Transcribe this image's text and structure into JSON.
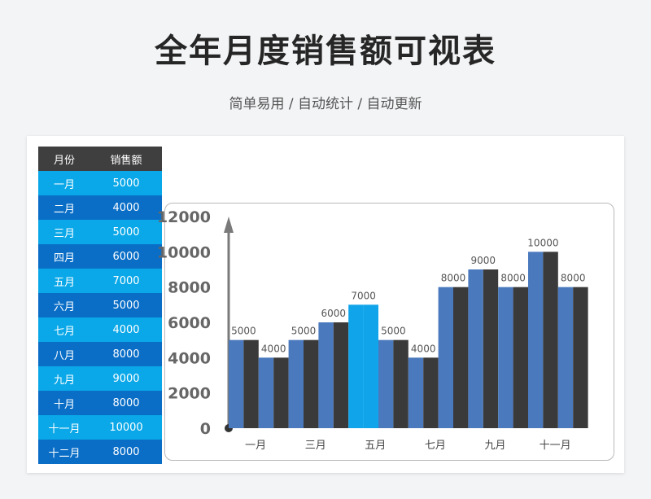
{
  "header": {
    "title": "全年月度销售额可视表",
    "subtitle": "简单易用 / 自动统计 / 自动更新"
  },
  "table": {
    "col_month": "月份",
    "col_sales": "销售额",
    "rows": [
      {
        "month": "一月",
        "value": "5000"
      },
      {
        "month": "二月",
        "value": "4000"
      },
      {
        "month": "三月",
        "value": "5000"
      },
      {
        "month": "四月",
        "value": "6000"
      },
      {
        "month": "五月",
        "value": "7000"
      },
      {
        "month": "六月",
        "value": "5000"
      },
      {
        "month": "七月",
        "value": "4000"
      },
      {
        "month": "八月",
        "value": "8000"
      },
      {
        "month": "九月",
        "value": "9000"
      },
      {
        "month": "十月",
        "value": "8000"
      },
      {
        "month": "十一月",
        "value": "10000"
      },
      {
        "month": "十二月",
        "value": "8000"
      }
    ]
  },
  "chart_data": {
    "type": "bar",
    "categories": [
      "一月",
      "二月",
      "三月",
      "四月",
      "五月",
      "六月",
      "七月",
      "八月",
      "九月",
      "十月",
      "十一月",
      "十二月"
    ],
    "values": [
      5000,
      4000,
      5000,
      6000,
      7000,
      5000,
      4000,
      8000,
      9000,
      8000,
      10000,
      8000
    ],
    "x_tick_labels": [
      "一月",
      "三月",
      "五月",
      "七月",
      "九月",
      "十一月"
    ],
    "y_ticks": [
      0,
      2000,
      4000,
      6000,
      8000,
      10000,
      12000
    ],
    "ylim": [
      0,
      12000
    ],
    "highlight_index": 4,
    "colors": {
      "bar": "#4a79bd",
      "bar_shadow": "#3a3a3a",
      "highlight": "#10a5ea",
      "axis": "#7a7a7a",
      "label": "#555555"
    }
  }
}
